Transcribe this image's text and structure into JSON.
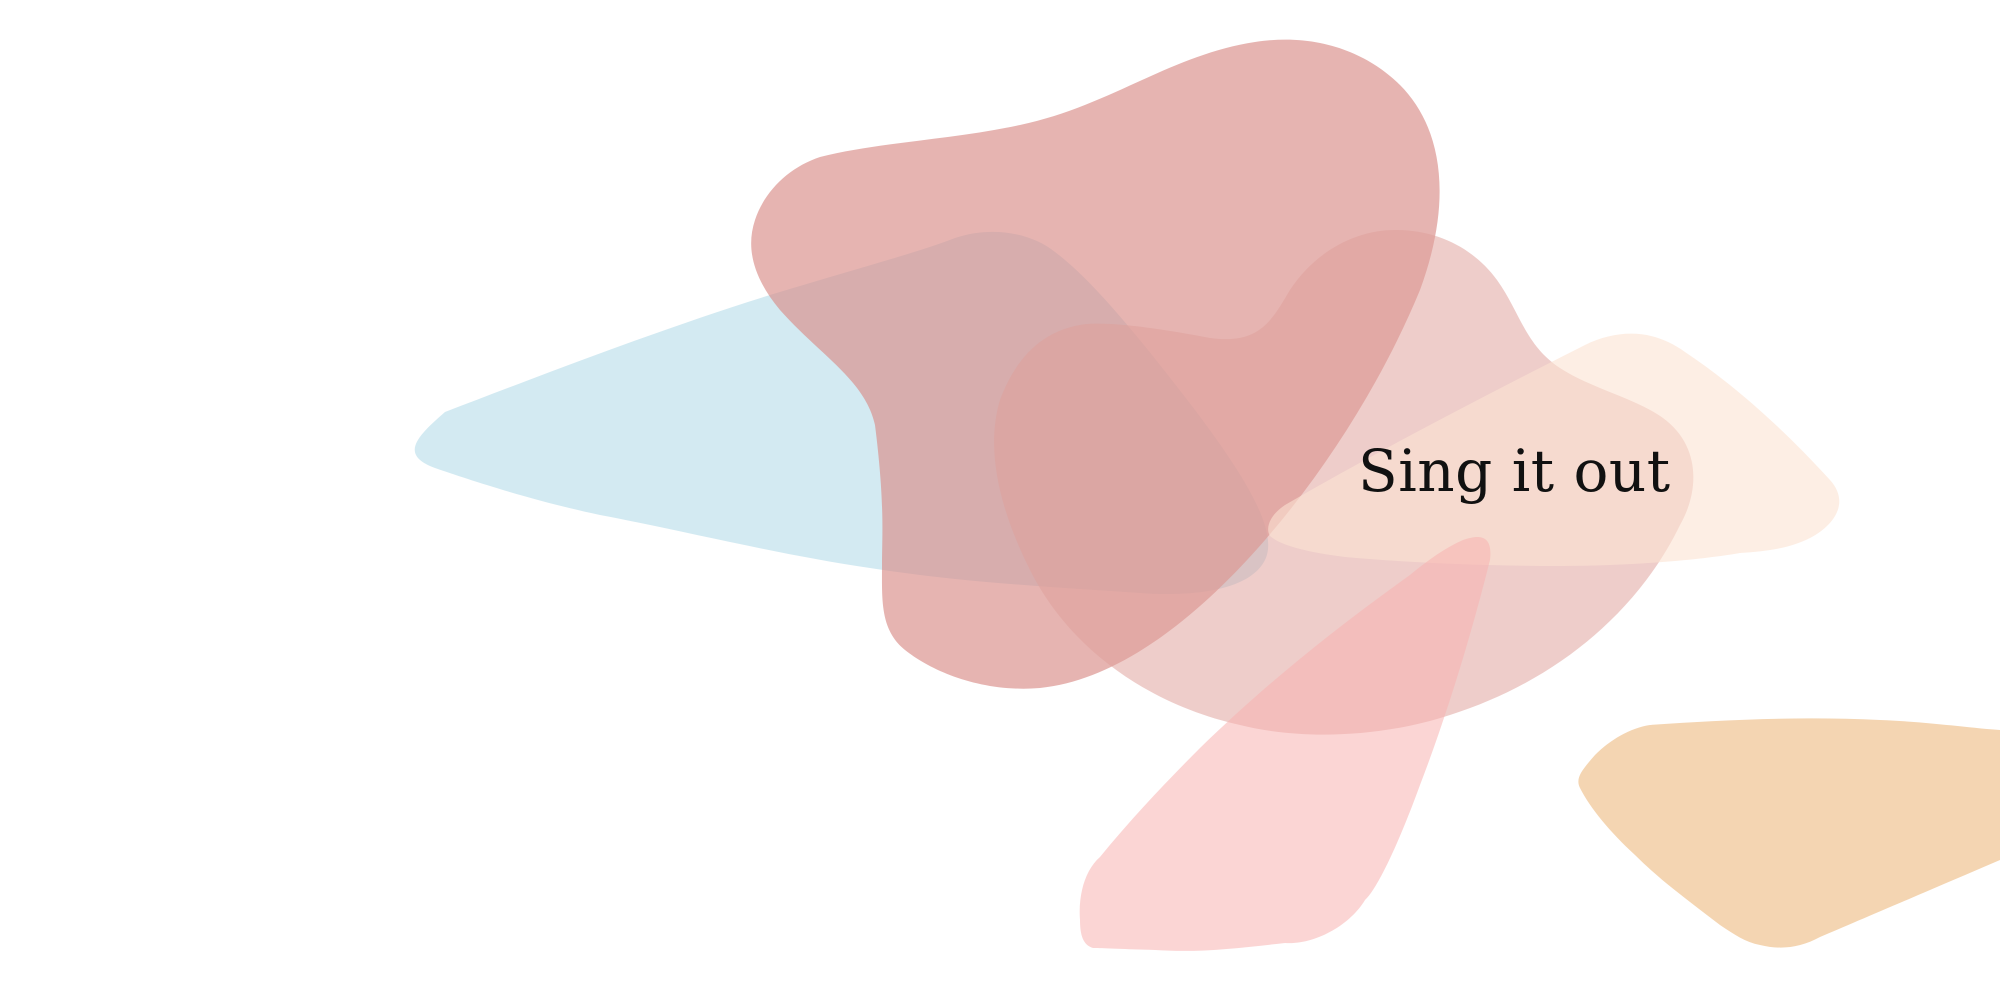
{
  "headline": {
    "text": "Sing it out",
    "color": "#111111"
  },
  "shapes": [
    {
      "name": "blue-blob",
      "color": "#a8d5e6",
      "opacity": 0.5
    },
    {
      "name": "rose-blob",
      "color": "#d98c87",
      "opacity": 0.65
    },
    {
      "name": "blush-blob",
      "color": "#dfa09a",
      "opacity": 0.52
    },
    {
      "name": "cream-blob",
      "color": "#fbe3d2",
      "opacity": 0.6
    },
    {
      "name": "pink-blob",
      "color": "#f7b2b0",
      "opacity": 0.55
    },
    {
      "name": "sand-blob",
      "color": "#eebf89",
      "opacity": 0.65
    }
  ]
}
